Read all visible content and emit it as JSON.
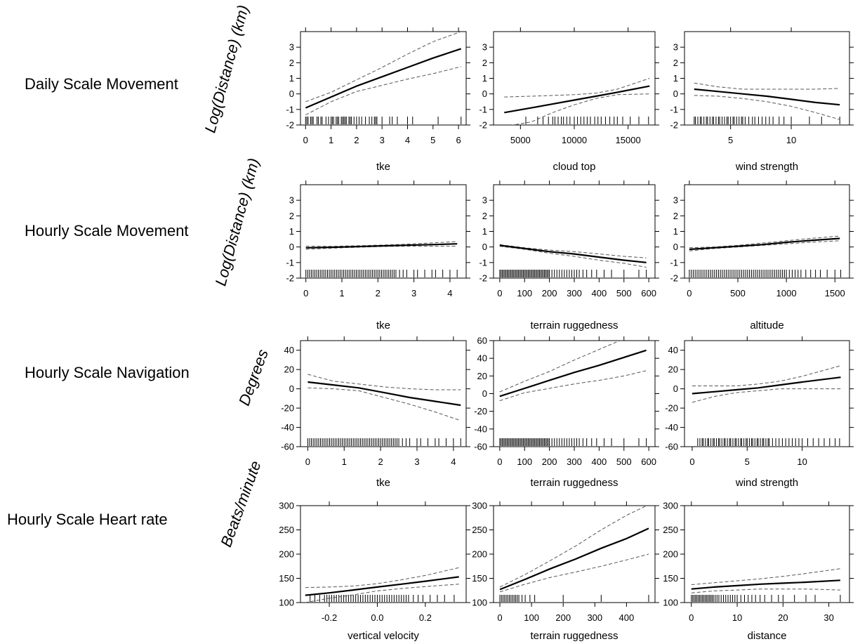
{
  "row_labels": [
    "Daily Scale Movement",
    "Hourly Scale Movement",
    "Hourly Scale Navigation",
    "Hourly Scale Heart rate"
  ],
  "y_labels": [
    "Log(Distance) (km)",
    "Log(Distance) (km)",
    "Degrees",
    "Beats/minute"
  ],
  "colors": {
    "line": "#000000",
    "ci": "#555555",
    "frame": "#000000"
  },
  "chart_data": [
    {
      "type": "line",
      "row": 0,
      "col": 0,
      "xlabel": "tke",
      "xlim": [
        -0.2,
        6.3
      ],
      "ylim": [
        -2,
        4
      ],
      "xticks": [
        0,
        1,
        2,
        3,
        4,
        5,
        6
      ],
      "yticks": [
        -2,
        -1,
        0,
        1,
        2,
        3
      ],
      "ytick_side": "left",
      "x": [
        0,
        1,
        2,
        3,
        4,
        5,
        6.1
      ],
      "fit": [
        -0.9,
        -0.2,
        0.5,
        1.1,
        1.7,
        2.3,
        2.9
      ],
      "lower": [
        -1.35,
        -0.5,
        0.15,
        0.55,
        0.95,
        1.3,
        1.75
      ],
      "upper": [
        -0.5,
        0.1,
        0.9,
        1.7,
        2.55,
        3.35,
        4.0
      ],
      "rug": [
        0,
        0.05,
        0.1,
        0.2,
        0.25,
        0.3,
        0.45,
        0.5,
        0.6,
        0.65,
        0.8,
        0.9,
        1.0,
        1.05,
        1.1,
        1.2,
        1.25,
        1.3,
        1.4,
        1.45,
        1.5,
        1.55,
        1.6,
        1.7,
        1.75,
        1.8,
        1.9,
        2.0,
        2.1,
        2.2,
        2.35,
        2.5,
        2.6,
        2.7,
        2.75,
        2.8,
        3.0,
        3.3,
        3.4,
        3.6,
        4.0,
        4.2,
        5.2,
        6.1
      ]
    },
    {
      "type": "line",
      "row": 0,
      "col": 1,
      "xlabel": "cloud top",
      "xlim": [
        2500,
        17500
      ],
      "ylim": [
        -2,
        4
      ],
      "xticks": [
        5000,
        10000,
        15000
      ],
      "yticks": [
        -2,
        -1,
        0,
        1,
        2,
        3
      ],
      "ytick_side": "left",
      "x": [
        3500,
        6000,
        8000,
        10000,
        12000,
        14000,
        17000
      ],
      "fit": [
        -1.2,
        -0.9,
        -0.65,
        -0.4,
        -0.15,
        0.1,
        0.5
      ],
      "lower": [
        -2.1,
        -1.8,
        -1.2,
        -0.7,
        -0.3,
        -0.05,
        0.0
      ],
      "upper": [
        -0.2,
        -0.15,
        -0.1,
        -0.05,
        0.05,
        0.3,
        1.0
      ],
      "rug": [
        5500,
        6600,
        7100,
        7600,
        8000,
        8200,
        8500,
        8800,
        9000,
        9300,
        9600,
        10000,
        10300,
        10600,
        10900,
        11200,
        11500,
        11900,
        12200,
        12500,
        12900,
        13300,
        13700,
        14000,
        14500,
        15200,
        16000,
        16900
      ]
    },
    {
      "type": "line",
      "row": 0,
      "col": 2,
      "xlabel": "wind strength",
      "xlim": [
        1.2,
        14.8
      ],
      "ylim": [
        -2,
        4
      ],
      "xticks": [
        5,
        10
      ],
      "yticks": [
        -2,
        -1,
        0,
        1,
        2,
        3
      ],
      "ytick_side": "left",
      "x": [
        2,
        4,
        6,
        8,
        10,
        12,
        14
      ],
      "fit": [
        0.3,
        0.15,
        0.0,
        -0.15,
        -0.35,
        -0.55,
        -0.7
      ],
      "lower": [
        -0.1,
        -0.15,
        -0.3,
        -0.5,
        -0.8,
        -1.2,
        -1.65
      ],
      "upper": [
        0.7,
        0.45,
        0.3,
        0.3,
        0.3,
        0.3,
        0.35
      ],
      "rug": [
        2.0,
        2.1,
        2.3,
        2.5,
        2.6,
        2.8,
        3.0,
        3.1,
        3.3,
        3.5,
        3.6,
        3.8,
        4.0,
        4.1,
        4.3,
        4.5,
        4.7,
        4.8,
        5.0,
        5.2,
        5.3,
        5.5,
        5.7,
        5.9,
        6.0,
        6.2,
        6.5,
        6.8,
        7.0,
        7.3,
        7.6,
        7.9,
        8.2,
        8.5,
        9.0,
        9.4,
        10.0,
        11.5,
        12.5,
        14.0
      ]
    },
    {
      "type": "line",
      "row": 1,
      "col": 0,
      "xlabel": "tke",
      "xlim": [
        -0.15,
        4.45
      ],
      "ylim": [
        -2,
        4
      ],
      "xticks": [
        0,
        1,
        2,
        3,
        4
      ],
      "yticks": [
        -2,
        -1,
        0,
        1,
        2,
        3
      ],
      "ytick_side": "left",
      "x": [
        0,
        0.7,
        1.4,
        2.1,
        2.8,
        3.5,
        4.2
      ],
      "fit": [
        -0.05,
        -0.02,
        0.02,
        0.07,
        0.11,
        0.15,
        0.2
      ],
      "lower": [
        -0.15,
        -0.08,
        -0.02,
        0.03,
        0.05,
        0.05,
        0.05
      ],
      "upper": [
        0.05,
        0.04,
        0.08,
        0.12,
        0.18,
        0.26,
        0.35
      ],
      "rug": [
        0,
        0.05,
        0.1,
        0.15,
        0.2,
        0.25,
        0.3,
        0.35,
        0.4,
        0.45,
        0.5,
        0.55,
        0.6,
        0.65,
        0.7,
        0.75,
        0.8,
        0.85,
        0.9,
        0.95,
        1.0,
        1.05,
        1.1,
        1.15,
        1.2,
        1.25,
        1.3,
        1.35,
        1.4,
        1.45,
        1.5,
        1.55,
        1.6,
        1.65,
        1.7,
        1.75,
        1.8,
        1.85,
        1.9,
        1.95,
        2.0,
        2.05,
        2.1,
        2.15,
        2.2,
        2.25,
        2.3,
        2.35,
        2.4,
        2.45,
        2.5,
        2.6,
        2.7,
        2.8,
        3.0,
        3.1,
        3.3,
        3.5,
        3.6,
        3.8,
        4.0,
        4.2
      ]
    },
    {
      "type": "line",
      "row": 1,
      "col": 1,
      "xlabel": "terrain ruggedness",
      "xlim": [
        -25,
        625
      ],
      "ylim": [
        -2,
        4
      ],
      "xticks": [
        0,
        100,
        200,
        300,
        400,
        500,
        600
      ],
      "yticks": [
        -2,
        -1,
        0,
        1,
        2,
        3
      ],
      "ytick_side": "left",
      "x": [
        0,
        100,
        200,
        300,
        400,
        500,
        590
      ],
      "fit": [
        0.1,
        -0.1,
        -0.3,
        -0.45,
        -0.65,
        -0.85,
        -1.0
      ],
      "lower": [
        0.05,
        -0.15,
        -0.4,
        -0.6,
        -0.85,
        -1.05,
        -1.3
      ],
      "upper": [
        0.15,
        -0.05,
        -0.2,
        -0.3,
        -0.45,
        -0.6,
        -0.7
      ],
      "rug": [
        0,
        5,
        10,
        15,
        20,
        25,
        30,
        35,
        40,
        45,
        50,
        55,
        60,
        65,
        70,
        75,
        80,
        85,
        90,
        95,
        100,
        105,
        110,
        115,
        120,
        125,
        130,
        135,
        140,
        145,
        150,
        155,
        160,
        165,
        170,
        175,
        180,
        185,
        190,
        195,
        200,
        210,
        220,
        230,
        240,
        250,
        260,
        270,
        280,
        290,
        300,
        310,
        320,
        335,
        350,
        370,
        390,
        420,
        450,
        500,
        560,
        590
      ]
    },
    {
      "type": "line",
      "row": 1,
      "col": 2,
      "xlabel": "altitude",
      "xlim": [
        -50,
        1650
      ],
      "ylim": [
        -2,
        4
      ],
      "xticks": [
        0,
        500,
        1000,
        1500
      ],
      "yticks": [
        -2,
        -1,
        0,
        1,
        2,
        3
      ],
      "ytick_side": "left",
      "x": [
        0,
        250,
        500,
        750,
        1000,
        1250,
        1550
      ],
      "fit": [
        -0.15,
        -0.05,
        0.05,
        0.15,
        0.3,
        0.42,
        0.55
      ],
      "lower": [
        -0.25,
        -0.1,
        0.0,
        0.1,
        0.2,
        0.3,
        0.4
      ],
      "upper": [
        -0.05,
        0.0,
        0.1,
        0.25,
        0.4,
        0.55,
        0.7
      ],
      "rug": [
        0,
        20,
        40,
        60,
        80,
        100,
        120,
        140,
        160,
        180,
        200,
        220,
        240,
        260,
        280,
        300,
        320,
        340,
        360,
        380,
        400,
        420,
        440,
        460,
        480,
        500,
        520,
        540,
        560,
        580,
        600,
        620,
        640,
        660,
        680,
        700,
        720,
        740,
        760,
        780,
        800,
        820,
        840,
        860,
        880,
        900,
        920,
        940,
        960,
        980,
        1000,
        1030,
        1060,
        1090,
        1120,
        1150,
        1200,
        1250,
        1300,
        1350,
        1420,
        1500,
        1560
      ]
    },
    {
      "type": "line",
      "row": 2,
      "col": 0,
      "xlabel": "tke",
      "xlim": [
        -0.2,
        4.35
      ],
      "ylim": [
        -60,
        50
      ],
      "xticks": [
        0,
        1,
        2,
        3,
        4
      ],
      "yticks": [
        -60,
        -40,
        -20,
        0,
        20,
        40
      ],
      "ytick_side": "left",
      "x": [
        0,
        0.7,
        1.4,
        2.1,
        2.8,
        3.5,
        4.2
      ],
      "fit": [
        7,
        4,
        1,
        -4,
        -9,
        -13,
        -17
      ],
      "lower": [
        1,
        0,
        -2,
        -9,
        -16,
        -24,
        -33
      ],
      "upper": [
        15,
        8,
        5,
        2,
        0,
        -1,
        -1
      ],
      "rug": [
        0,
        0.05,
        0.1,
        0.15,
        0.2,
        0.25,
        0.3,
        0.35,
        0.4,
        0.45,
        0.5,
        0.55,
        0.6,
        0.65,
        0.7,
        0.75,
        0.8,
        0.85,
        0.9,
        0.95,
        1.0,
        1.05,
        1.1,
        1.15,
        1.2,
        1.25,
        1.3,
        1.35,
        1.4,
        1.45,
        1.5,
        1.55,
        1.6,
        1.65,
        1.7,
        1.75,
        1.8,
        1.85,
        1.9,
        1.95,
        2.0,
        2.05,
        2.1,
        2.15,
        2.2,
        2.25,
        2.3,
        2.35,
        2.4,
        2.45,
        2.5,
        2.6,
        2.7,
        2.8,
        3.0,
        3.1,
        3.3,
        3.5,
        3.6,
        3.8,
        4.0,
        4.2
      ]
    },
    {
      "type": "line",
      "row": 2,
      "col": 1,
      "xlabel": "terrain ruggedness",
      "xlim": [
        -25,
        625
      ],
      "ylim": [
        -60,
        60
      ],
      "xticks": [
        0,
        100,
        200,
        300,
        400,
        500,
        600
      ],
      "yticks": [
        -60,
        -40,
        -20,
        0,
        20,
        40,
        60
      ],
      "ytick_side": "left",
      "x": [
        0,
        100,
        200,
        300,
        400,
        500,
        590
      ],
      "fit": [
        -3,
        6,
        15,
        24,
        32,
        41,
        49
      ],
      "lower": [
        -8,
        1,
        6,
        11,
        15,
        20,
        26
      ],
      "upper": [
        2,
        14,
        25,
        38,
        50,
        62,
        72
      ],
      "rug": [
        0,
        5,
        10,
        15,
        20,
        25,
        30,
        35,
        40,
        45,
        50,
        55,
        60,
        65,
        70,
        75,
        80,
        85,
        90,
        95,
        100,
        105,
        110,
        115,
        120,
        125,
        130,
        135,
        140,
        145,
        150,
        155,
        160,
        165,
        170,
        175,
        180,
        185,
        190,
        195,
        200,
        210,
        220,
        230,
        240,
        250,
        260,
        270,
        280,
        290,
        300,
        310,
        320,
        335,
        350,
        370,
        390,
        420,
        450,
        500,
        560,
        590
      ]
    },
    {
      "type": "line",
      "row": 2,
      "col": 2,
      "xlabel": "wind strength",
      "xlim": [
        -0.7,
        14.3
      ],
      "ylim": [
        -60,
        50
      ],
      "xticks": [
        0,
        5,
        10
      ],
      "yticks": [
        -60,
        -40,
        -20,
        0,
        20,
        40
      ],
      "ytick_side": "left",
      "x": [
        0,
        2,
        4,
        6,
        8,
        10,
        13.5
      ],
      "fit": [
        -5,
        -3,
        -1,
        1,
        4,
        7,
        12
      ],
      "lower": [
        -14,
        -8,
        -4,
        -2,
        0,
        0,
        0
      ],
      "upper": [
        3,
        3,
        3,
        5,
        8,
        13,
        24
      ],
      "rug": [
        0.5,
        0.7,
        0.9,
        1.0,
        1.2,
        1.4,
        1.5,
        1.7,
        1.9,
        2.0,
        2.2,
        2.4,
        2.5,
        2.7,
        2.9,
        3.0,
        3.2,
        3.4,
        3.5,
        3.7,
        3.9,
        4.0,
        4.2,
        4.4,
        4.5,
        4.7,
        4.9,
        5.0,
        5.2,
        5.4,
        5.5,
        5.7,
        5.9,
        6.0,
        6.2,
        6.4,
        6.5,
        6.7,
        6.9,
        7.0,
        7.3,
        7.6,
        7.9,
        8.2,
        8.5,
        8.8,
        9.1,
        9.4,
        9.7,
        10.0,
        10.5,
        11.0,
        11.5,
        12.0,
        12.5,
        13.0,
        13.4
      ]
    },
    {
      "type": "line",
      "row": 3,
      "col": 0,
      "xlabel": "vertical velocity",
      "xlim": [
        -0.32,
        0.37
      ],
      "ylim": [
        100,
        300
      ],
      "xticks": [
        -0.2,
        0.0,
        0.2
      ],
      "yticks": [
        100,
        150,
        200,
        250,
        300
      ],
      "ytick_side": "left",
      "x": [
        -0.3,
        -0.2,
        -0.1,
        0.0,
        0.1,
        0.2,
        0.34
      ],
      "fit": [
        115,
        120,
        126,
        132,
        138,
        144,
        153
      ],
      "lower": [
        100,
        109,
        116,
        124,
        129,
        133,
        138
      ],
      "upper": [
        131,
        132,
        134,
        139,
        147,
        156,
        172
      ],
      "rug": [
        -0.28,
        -0.26,
        -0.24,
        -0.22,
        -0.21,
        -0.2,
        -0.19,
        -0.18,
        -0.17,
        -0.16,
        -0.15,
        -0.14,
        -0.13,
        -0.12,
        -0.11,
        -0.1,
        -0.09,
        -0.08,
        -0.07,
        -0.06,
        -0.05,
        -0.04,
        -0.03,
        -0.02,
        -0.01,
        0.0,
        0.01,
        0.02,
        0.03,
        0.04,
        0.05,
        0.06,
        0.07,
        0.08,
        0.09,
        0.1,
        0.11,
        0.12,
        0.13,
        0.15,
        0.17,
        0.19,
        0.22,
        0.25,
        0.28,
        0.32
      ]
    },
    {
      "type": "line",
      "row": 3,
      "col": 1,
      "xlabel": "terrain ruggedness",
      "xlim": [
        -20,
        490
      ],
      "ylim": [
        100,
        300
      ],
      "xticks": [
        0,
        100,
        200,
        300,
        400
      ],
      "yticks": [
        100,
        150,
        200,
        250,
        300
      ],
      "ytick_side": "left",
      "x": [
        0,
        80,
        160,
        240,
        320,
        400,
        470
      ],
      "fit": [
        127,
        148,
        170,
        190,
        212,
        232,
        253
      ],
      "lower": [
        122,
        138,
        152,
        163,
        175,
        188,
        200
      ],
      "upper": [
        132,
        158,
        187,
        217,
        250,
        280,
        302
      ],
      "rug": [
        0,
        5,
        10,
        15,
        20,
        25,
        30,
        35,
        40,
        45,
        50,
        55,
        60,
        70,
        80,
        95,
        110,
        200,
        320,
        470
      ]
    },
    {
      "type": "line",
      "row": 3,
      "col": 2,
      "xlabel": "distance",
      "xlim": [
        -1.5,
        34.5
      ],
      "ylim": [
        100,
        300
      ],
      "xticks": [
        0,
        10,
        20,
        30
      ],
      "yticks": [
        100,
        150,
        200,
        250,
        300
      ],
      "ytick_side": "left",
      "x": [
        0,
        5,
        10,
        15,
        20,
        25,
        32.5
      ],
      "fit": [
        128,
        132,
        135,
        138,
        140,
        142,
        146
      ],
      "lower": [
        120,
        124,
        126,
        128,
        128,
        128,
        126
      ],
      "upper": [
        137,
        141,
        145,
        149,
        154,
        160,
        170
      ],
      "rug": [
        0,
        0.3,
        0.6,
        0.9,
        1.2,
        1.5,
        1.8,
        2.1,
        2.4,
        2.7,
        3.0,
        3.3,
        3.6,
        3.9,
        4.2,
        4.5,
        4.8,
        5.2,
        5.6,
        6.0,
        6.5,
        7.0,
        7.5,
        8.0,
        8.5,
        9.0,
        9.5,
        10.0,
        10.8,
        11.6,
        12.4,
        13.2,
        14.0,
        15.0,
        16.0,
        17.5,
        19.0,
        20.0,
        22.5,
        25.0,
        27.0,
        32.5
      ]
    }
  ]
}
